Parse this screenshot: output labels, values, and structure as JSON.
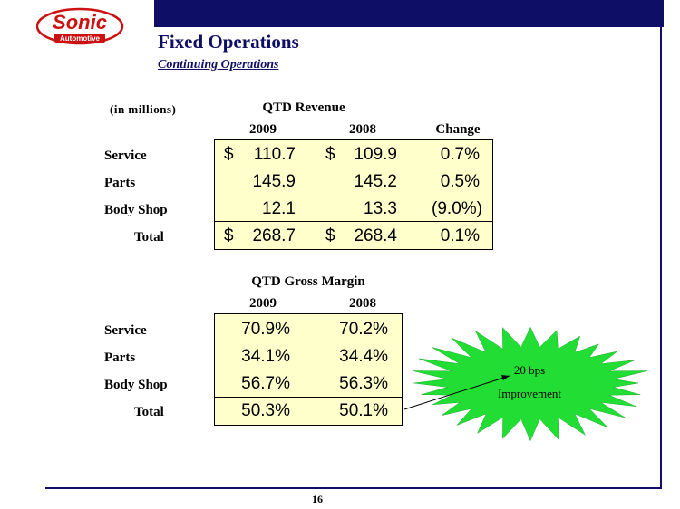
{
  "logo": {
    "brand": "Sonic",
    "sub": "Automotive"
  },
  "header": {
    "title": "Fixed Operations",
    "subtitle": "Continuing Operations"
  },
  "revenue": {
    "units_label": "(in millions)",
    "section_title": "QTD Revenue",
    "col_2009": "2009",
    "col_2008": "2008",
    "col_change": "Change",
    "currency": "$",
    "rows": [
      {
        "label": "Service",
        "v2009": "110.7",
        "v2008": "109.9",
        "change": "0.7%"
      },
      {
        "label": "Parts",
        "v2009": "145.9",
        "v2008": "145.2",
        "change": "0.5%"
      },
      {
        "label": "Body Shop",
        "v2009": "12.1",
        "v2008": "13.3",
        "change": "(9.0%)"
      },
      {
        "label": "Total",
        "v2009": "268.7",
        "v2008": "268.4",
        "change": "0.1%"
      }
    ]
  },
  "margin": {
    "section_title": "QTD Gross Margin",
    "col_2009": "2009",
    "col_2008": "2008",
    "rows": [
      {
        "label": "Service",
        "v2009": "70.9%",
        "v2008": "70.2%"
      },
      {
        "label": "Parts",
        "v2009": "34.1%",
        "v2008": "34.4%"
      },
      {
        "label": "Body Shop",
        "v2009": "56.7%",
        "v2008": "56.3%"
      },
      {
        "label": "Total",
        "v2009": "50.3%",
        "v2008": "50.1%"
      }
    ]
  },
  "callout": {
    "line1": "20 bps",
    "line2": "Improvement"
  },
  "footer": {
    "page_number": "16"
  },
  "colors": {
    "navy": "#0e0e66",
    "brand_red": "#cc1111",
    "highlight": "#ffffcc",
    "burst": "#22dd33"
  }
}
